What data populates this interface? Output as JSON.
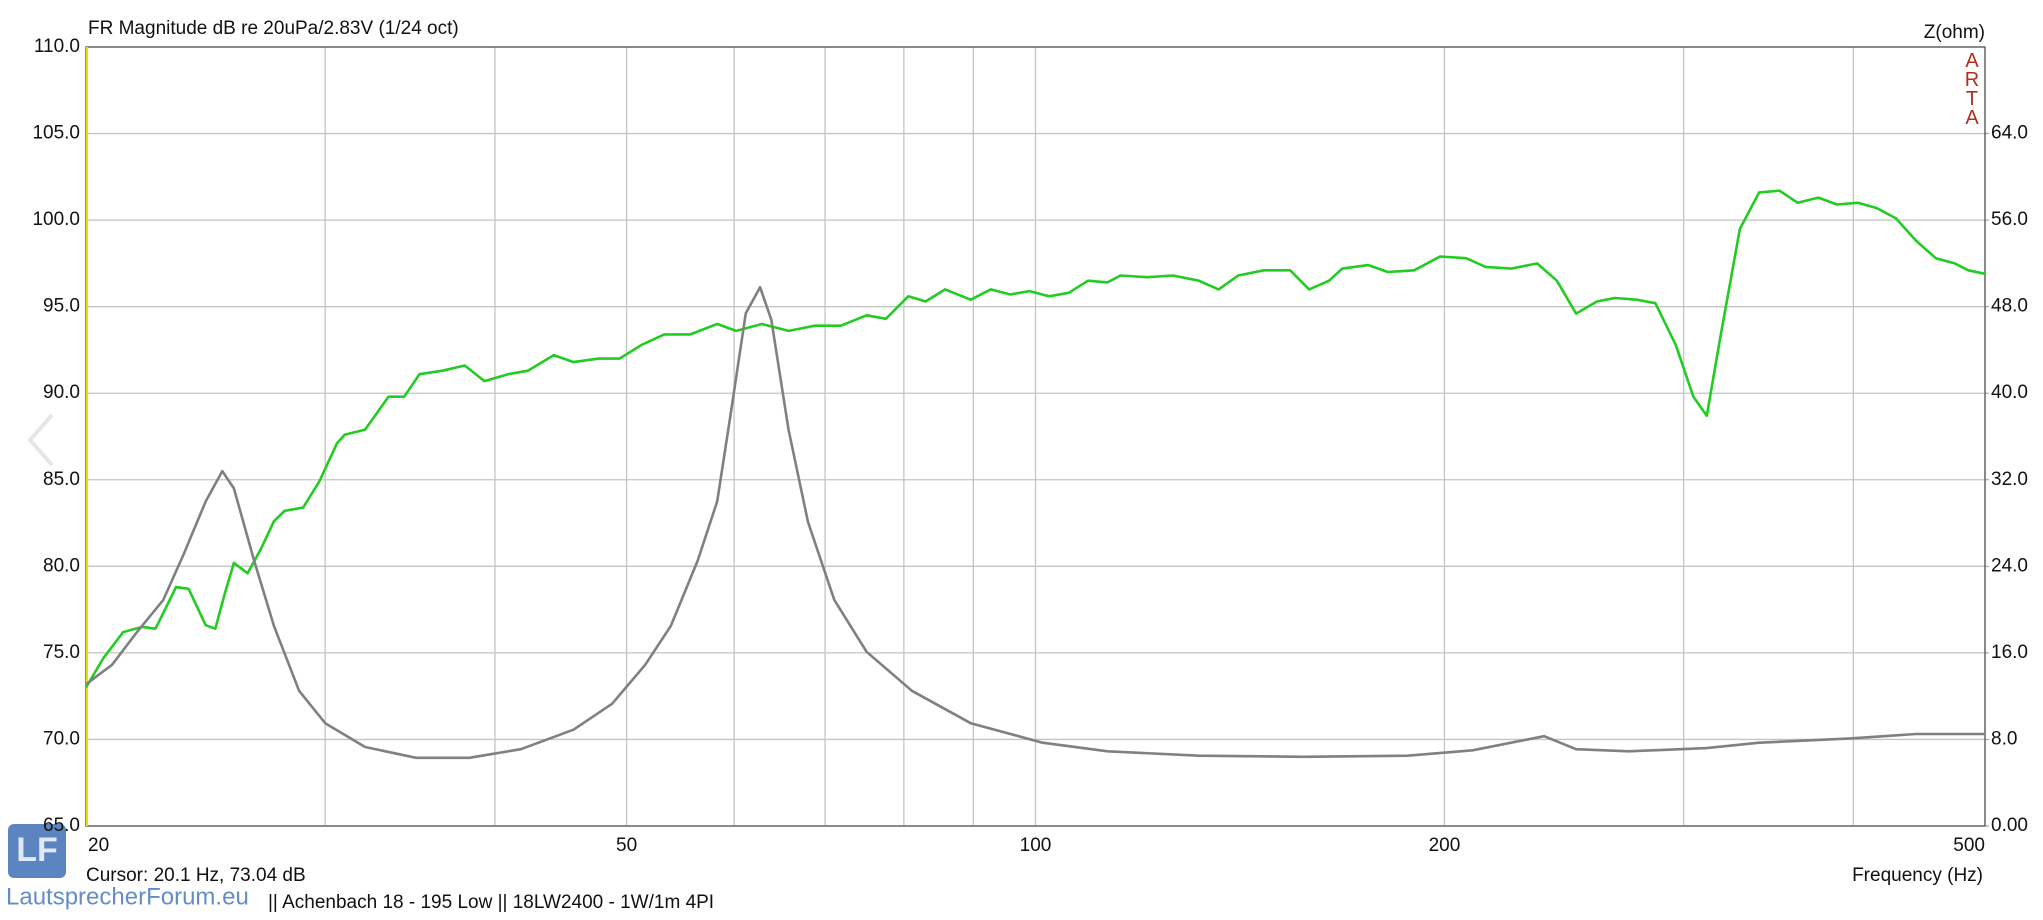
{
  "chart_data": {
    "type": "line",
    "title": "FR Magnitude dB re 20uPa/2.83V (1/24 oct)",
    "y2_label": "Z(ohm)",
    "brand": "ARTA",
    "xlabel": "Frequency (Hz)",
    "cursor": "Cursor: 20.1 Hz, 73.04 dB",
    "watermark": "LautsprecherForum.eu",
    "footer": "||  Achenbach 18 - 195 Low  ||  18LW2400  - 1W/1m 4PI",
    "xscale": "log",
    "xlim": [
      20,
      500
    ],
    "xticks": [
      20,
      50,
      100,
      200,
      500
    ],
    "xgrid_minor": [
      30,
      40,
      60,
      70,
      80,
      90,
      300,
      400
    ],
    "ylim": [
      65,
      110
    ],
    "yticks": [
      {
        "value": 65,
        "label": "65.0"
      },
      {
        "value": 70,
        "label": "70.0"
      },
      {
        "value": 75,
        "label": "75.0"
      },
      {
        "value": 80,
        "label": "80.0"
      },
      {
        "value": 85,
        "label": "85.0"
      },
      {
        "value": 90,
        "label": "90.0"
      },
      {
        "value": 95,
        "label": "95.0"
      },
      {
        "value": 100,
        "label": "100.0"
      },
      {
        "value": 105,
        "label": "105.0"
      },
      {
        "value": 110,
        "label": "110.0"
      }
    ],
    "y2lim": [
      0,
      72
    ],
    "y2ticks": [
      {
        "value": 0,
        "label": "0.00"
      },
      {
        "value": 8,
        "label": "8.0"
      },
      {
        "value": 16,
        "label": "16.0"
      },
      {
        "value": 24,
        "label": "24.0"
      },
      {
        "value": 32,
        "label": "32.0"
      },
      {
        "value": 40,
        "label": "40.0"
      },
      {
        "value": 48,
        "label": "48.0"
      },
      {
        "value": 56,
        "label": "56.0"
      },
      {
        "value": 64,
        "label": "64.0"
      }
    ],
    "grid": true,
    "series": [
      {
        "color": "#22cc22",
        "x": [
          20,
          20.6,
          21.3,
          22,
          22.5,
          23.3,
          23.8,
          24.5,
          24.9,
          25.3,
          25.7,
          26.3,
          26.9,
          27.5,
          28,
          28.9,
          29.7,
          30.6,
          31,
          32.1,
          33.4,
          34.3,
          35.2,
          36.6,
          38,
          39.3,
          40.9,
          42.3,
          44.2,
          45.7,
          47.7,
          49.4,
          51.3,
          53.3,
          55.7,
          58.3,
          60.2,
          62.9,
          65.8,
          68.8,
          71.9,
          75.1,
          77.6,
          80.6,
          83,
          85.8,
          89.6,
          92.7,
          95.8,
          99,
          102.3,
          105.8,
          109.3,
          113,
          115.5,
          120.8,
          126.2,
          131.9,
          136.4,
          141,
          147.3,
          154,
          159,
          164.5,
          168.2,
          175.8,
          181.7,
          190,
          198.5,
          207.5,
          214.5,
          224,
          234,
          242,
          250,
          259,
          267,
          277,
          286,
          296,
          305,
          312,
          319,
          330,
          341,
          353,
          364,
          377,
          389,
          403,
          416,
          430,
          445,
          460,
          475,
          486,
          500
        ],
        "values": [
          73.0,
          74.7,
          76.2,
          76.5,
          76.4,
          78.8,
          78.7,
          76.6,
          76.4,
          78.4,
          80.2,
          79.6,
          81.0,
          82.6,
          83.2,
          83.4,
          84.9,
          87.1,
          87.6,
          87.9,
          89.8,
          89.8,
          91.1,
          91.3,
          91.6,
          90.7,
          91.1,
          91.3,
          92.2,
          91.8,
          92.0,
          92.0,
          92.8,
          93.4,
          93.4,
          94.0,
          93.6,
          94.0,
          93.6,
          93.9,
          93.9,
          94.5,
          94.3,
          95.6,
          95.3,
          96.0,
          95.4,
          96.0,
          95.7,
          95.9,
          95.6,
          95.8,
          96.5,
          96.4,
          96.8,
          96.7,
          96.8,
          96.5,
          96.0,
          96.8,
          97.1,
          97.1,
          96.0,
          96.5,
          97.2,
          97.4,
          97.0,
          97.1,
          97.9,
          97.8,
          97.3,
          97.2,
          97.5,
          96.5,
          94.6,
          95.3,
          95.5,
          95.4,
          95.2,
          92.8,
          89.8,
          88.7,
          93.1,
          99.5,
          101.6,
          101.7,
          101.0,
          101.3,
          100.9,
          101.0,
          100.7,
          100.1,
          98.8,
          97.8,
          97.5,
          97.1,
          96.9
        ]
      },
      {
        "color": "#808080",
        "axis": "y2",
        "x": [
          20,
          20.9,
          21.8,
          22.8,
          23.6,
          24.5,
          25.2,
          25.7,
          26.6,
          27.5,
          28.7,
          30,
          32.1,
          35,
          38.3,
          41.8,
          45.7,
          48.8,
          51.6,
          53.9,
          56.4,
          58.3,
          59.6,
          61.2,
          62.7,
          63.9,
          65.8,
          68,
          71.1,
          75.1,
          81.1,
          89.6,
          101.2,
          113,
          131.9,
          157.4,
          187.9,
          209.8,
          236.8,
          250,
          273.4,
          312,
          341,
          398,
          445,
          500
        ],
        "values": [
          13.1,
          14.9,
          17.9,
          20.9,
          25.1,
          30.0,
          32.8,
          31.2,
          24.5,
          18.5,
          12.5,
          9.5,
          7.3,
          6.3,
          6.3,
          7.1,
          8.9,
          11.3,
          14.9,
          18.5,
          24.5,
          30.0,
          37.8,
          47.4,
          49.8,
          46.8,
          36.6,
          28.1,
          20.9,
          16.1,
          12.5,
          9.5,
          7.7,
          6.9,
          6.5,
          6.4,
          6.5,
          7.0,
          8.3,
          7.1,
          6.9,
          7.2,
          7.7,
          8.1,
          8.5,
          8.5
        ]
      }
    ]
  }
}
